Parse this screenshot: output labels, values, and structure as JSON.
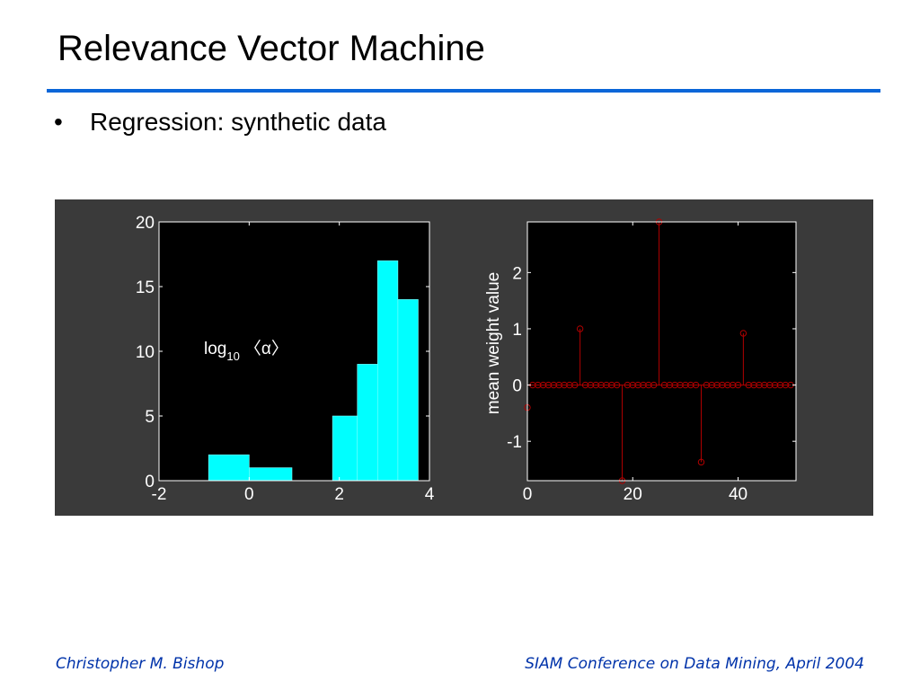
{
  "slide": {
    "title": "Relevance Vector Machine",
    "bullet_marker": "•",
    "bullet": "Regression: synthetic data"
  },
  "footer": {
    "left": "Christopher M. Bishop",
    "right": "SIAM Conference on Data Mining, April 2004"
  },
  "colors": {
    "title_rule": "#0a66d8",
    "panel_bg": "#3a3a3a",
    "histogram_bar": "#00ffff",
    "stem": "#b00000",
    "footer_text": "#0033aa"
  },
  "chart_data": [
    {
      "type": "bar",
      "subtype": "histogram",
      "annotation": {
        "base": "log",
        "subscript": "10",
        "expression": "〈α〉"
      },
      "xlim": [
        -2,
        4
      ],
      "ylim": [
        0,
        20
      ],
      "xticks": [
        "-2",
        "0",
        "2",
        "4"
      ],
      "yticks": [
        "0",
        "5",
        "10",
        "15",
        "20"
      ],
      "bins": [
        {
          "x0": -0.9,
          "x1": 0.0,
          "value": 2
        },
        {
          "x0": 0.0,
          "x1": 0.95,
          "value": 1
        },
        {
          "x0": 1.85,
          "x1": 2.4,
          "value": 5
        },
        {
          "x0": 2.4,
          "x1": 2.85,
          "value": 9
        },
        {
          "x0": 2.85,
          "x1": 3.3,
          "value": 17
        },
        {
          "x0": 3.3,
          "x1": 3.75,
          "value": 14
        }
      ],
      "grid": false
    },
    {
      "type": "scatter",
      "subtype": "stem",
      "ylabel": "mean weight value",
      "xlim": [
        0,
        51
      ],
      "ylim": [
        -1.7,
        2.9
      ],
      "xticks": [
        "0",
        "20",
        "40"
      ],
      "yticks": [
        "-1",
        "0",
        "1",
        "2"
      ],
      "x": [
        0,
        1,
        2,
        3,
        4,
        5,
        6,
        7,
        8,
        9,
        10,
        11,
        12,
        13,
        14,
        15,
        16,
        17,
        18,
        19,
        20,
        21,
        22,
        23,
        24,
        25,
        26,
        27,
        28,
        29,
        30,
        31,
        32,
        33,
        34,
        35,
        36,
        37,
        38,
        39,
        40,
        41,
        42,
        43,
        44,
        45,
        46,
        47,
        48,
        49,
        50
      ],
      "y": [
        -0.4,
        0,
        0,
        0,
        0,
        0,
        0,
        0,
        0,
        0,
        1,
        0,
        0,
        0,
        0,
        0,
        0,
        0,
        -1.7,
        0,
        0,
        0,
        0,
        0,
        0,
        2.9,
        0,
        0,
        0,
        0,
        0,
        0,
        0,
        -1.37,
        0,
        0,
        0,
        0,
        0,
        0,
        0,
        0.92,
        0,
        0,
        0,
        0,
        0,
        0,
        0,
        0,
        0
      ],
      "grid": false
    }
  ]
}
